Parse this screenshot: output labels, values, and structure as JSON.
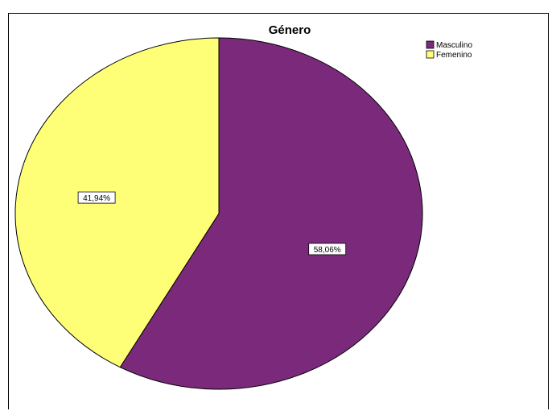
{
  "chart_data": {
    "type": "pie",
    "title": "Género",
    "categories": [
      "Masculino",
      "Femenino"
    ],
    "values": [
      58.06,
      41.94
    ],
    "labels": [
      "58,06%",
      "41,94%"
    ],
    "colors": [
      "#7B2A7B",
      "#FFFF77"
    ],
    "start_angle_deg": 0,
    "direction": "clockwise",
    "legend_position": "top-right"
  }
}
